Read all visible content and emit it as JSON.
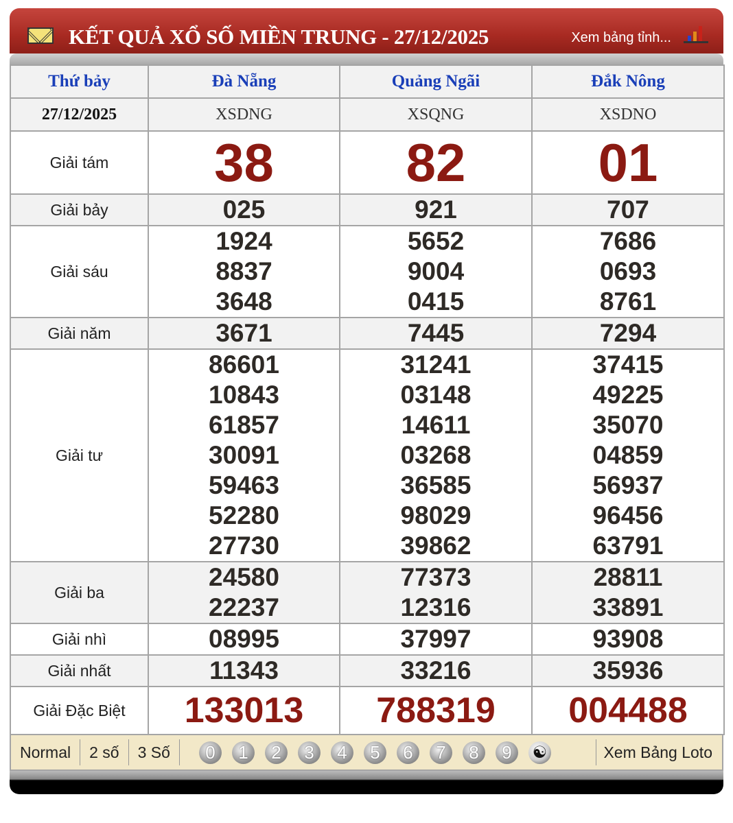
{
  "header": {
    "title": "KẾT QUẢ XỔ SỐ MIỀN TRUNG - 27/12/2025",
    "view_link": "Xem bảng tỉnh...",
    "accent": "#a82a22"
  },
  "table": {
    "day": "Thứ bảy",
    "date": "27/12/2025",
    "provinces": [
      {
        "name": "Đà Nẵng",
        "code": "XSDNG"
      },
      {
        "name": "Quảng Ngãi",
        "code": "XSQNG"
      },
      {
        "name": "Đắk Nông",
        "code": "XSDNO"
      }
    ],
    "prizes": [
      {
        "label": "Giải tám",
        "style": "big",
        "values": [
          [
            "38"
          ],
          [
            "82"
          ],
          [
            "01"
          ]
        ]
      },
      {
        "label": "Giải bảy",
        "style": "num",
        "values": [
          [
            "025"
          ],
          [
            "921"
          ],
          [
            "707"
          ]
        ]
      },
      {
        "label": "Giải sáu",
        "style": "num",
        "values": [
          [
            "1924",
            "8837",
            "3648"
          ],
          [
            "5652",
            "9004",
            "0415"
          ],
          [
            "7686",
            "0693",
            "8761"
          ]
        ]
      },
      {
        "label": "Giải năm",
        "style": "num",
        "values": [
          [
            "3671"
          ],
          [
            "7445"
          ],
          [
            "7294"
          ]
        ]
      },
      {
        "label": "Giải tư",
        "style": "num",
        "values": [
          [
            "86601",
            "10843",
            "61857",
            "30091",
            "59463",
            "52280",
            "27730"
          ],
          [
            "31241",
            "03148",
            "14611",
            "03268",
            "36585",
            "98029",
            "39862"
          ],
          [
            "37415",
            "49225",
            "35070",
            "04859",
            "56937",
            "96456",
            "63791"
          ]
        ]
      },
      {
        "label": "Giải ba",
        "style": "num",
        "values": [
          [
            "24580",
            "22237"
          ],
          [
            "77373",
            "12316"
          ],
          [
            "28811",
            "33891"
          ]
        ]
      },
      {
        "label": "Giải nhì",
        "style": "num",
        "values": [
          [
            "08995"
          ],
          [
            "37997"
          ],
          [
            "93908"
          ]
        ]
      },
      {
        "label": "Giải nhất",
        "style": "num",
        "values": [
          [
            "11343"
          ],
          [
            "33216"
          ],
          [
            "35936"
          ]
        ]
      },
      {
        "label": "Giải Đặc Biệt",
        "style": "db",
        "values": [
          [
            "133013"
          ],
          [
            "788319"
          ],
          [
            "004488"
          ]
        ]
      }
    ]
  },
  "footer": {
    "tabs": [
      "Normal",
      "2 số",
      "3 Số"
    ],
    "digits": [
      "0",
      "1",
      "2",
      "3",
      "4",
      "5",
      "6",
      "7",
      "8",
      "9"
    ],
    "yin_yang_icon": "yin-yang-icon",
    "view_loto": "Xem Bảng Loto"
  }
}
